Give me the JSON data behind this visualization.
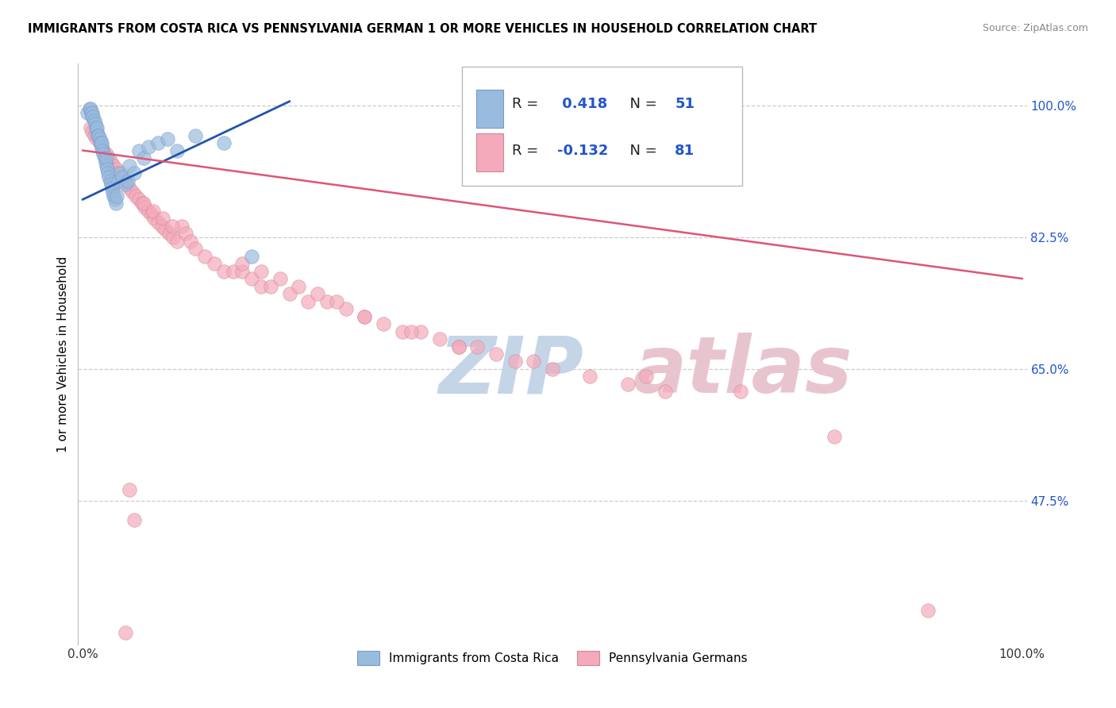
{
  "title": "IMMIGRANTS FROM COSTA RICA VS PENNSYLVANIA GERMAN 1 OR MORE VEHICLES IN HOUSEHOLD CORRELATION CHART",
  "source": "Source: ZipAtlas.com",
  "ylabel": "1 or more Vehicles in Household",
  "xlim": [
    -0.005,
    1.005
  ],
  "ylim": [
    0.285,
    1.055
  ],
  "background_color": "#ffffff",
  "blue_color": "#99bbdd",
  "pink_color": "#f4aabb",
  "blue_line_color": "#2255aa",
  "pink_line_color": "#dd5577",
  "blue_edge_color": "#7799cc",
  "pink_edge_color": "#cc8899",
  "R_blue": 0.418,
  "N_blue": 51,
  "R_pink": -0.132,
  "N_pink": 81,
  "grid_color": "#cccccc",
  "ytick_vals": [
    0.475,
    0.65,
    0.825,
    1.0
  ],
  "ytick_labels": [
    "47.5%",
    "65.0%",
    "82.5%",
    "100.0%"
  ],
  "legend_r1": "R =  0.418   N = 51",
  "legend_r2": "R = -0.132   N = 81",
  "blue_dots_x": [
    0.005,
    0.007,
    0.008,
    0.009,
    0.01,
    0.01,
    0.011,
    0.012,
    0.013,
    0.014,
    0.015,
    0.015,
    0.016,
    0.017,
    0.018,
    0.019,
    0.02,
    0.02,
    0.021,
    0.022,
    0.023,
    0.024,
    0.025,
    0.025,
    0.026,
    0.027,
    0.028,
    0.029,
    0.03,
    0.031,
    0.032,
    0.033,
    0.034,
    0.035,
    0.036,
    0.038,
    0.04,
    0.042,
    0.045,
    0.048,
    0.05,
    0.055,
    0.06,
    0.065,
    0.07,
    0.08,
    0.09,
    0.1,
    0.12,
    0.15,
    0.18
  ],
  "blue_dots_y": [
    0.99,
    0.995,
    0.995,
    0.99,
    0.985,
    0.99,
    0.985,
    0.98,
    0.975,
    0.97,
    0.965,
    0.97,
    0.96,
    0.96,
    0.955,
    0.95,
    0.945,
    0.95,
    0.94,
    0.935,
    0.93,
    0.925,
    0.92,
    0.93,
    0.915,
    0.91,
    0.905,
    0.9,
    0.895,
    0.89,
    0.885,
    0.88,
    0.875,
    0.87,
    0.88,
    0.9,
    0.91,
    0.905,
    0.895,
    0.9,
    0.92,
    0.91,
    0.94,
    0.93,
    0.945,
    0.95,
    0.955,
    0.94,
    0.96,
    0.95,
    0.8
  ],
  "pink_dots_x": [
    0.008,
    0.01,
    0.012,
    0.015,
    0.018,
    0.02,
    0.022,
    0.025,
    0.028,
    0.03,
    0.033,
    0.036,
    0.038,
    0.04,
    0.043,
    0.046,
    0.05,
    0.053,
    0.056,
    0.06,
    0.063,
    0.066,
    0.07,
    0.073,
    0.076,
    0.08,
    0.084,
    0.088,
    0.092,
    0.096,
    0.1,
    0.105,
    0.11,
    0.115,
    0.12,
    0.13,
    0.14,
    0.15,
    0.16,
    0.17,
    0.18,
    0.19,
    0.2,
    0.22,
    0.24,
    0.26,
    0.28,
    0.3,
    0.32,
    0.34,
    0.36,
    0.38,
    0.4,
    0.42,
    0.44,
    0.46,
    0.48,
    0.5,
    0.54,
    0.58,
    0.62,
    0.065,
    0.075,
    0.085,
    0.095,
    0.17,
    0.19,
    0.21,
    0.23,
    0.25,
    0.27,
    0.3,
    0.35,
    0.4,
    0.6,
    0.7,
    0.8,
    0.9,
    0.05,
    0.055,
    0.045
  ],
  "pink_dots_y": [
    0.97,
    0.965,
    0.96,
    0.955,
    0.95,
    0.945,
    0.94,
    0.935,
    0.93,
    0.925,
    0.92,
    0.915,
    0.91,
    0.905,
    0.9,
    0.895,
    0.89,
    0.885,
    0.88,
    0.875,
    0.87,
    0.865,
    0.86,
    0.855,
    0.85,
    0.845,
    0.84,
    0.835,
    0.83,
    0.825,
    0.82,
    0.84,
    0.83,
    0.82,
    0.81,
    0.8,
    0.79,
    0.78,
    0.78,
    0.78,
    0.77,
    0.76,
    0.76,
    0.75,
    0.74,
    0.74,
    0.73,
    0.72,
    0.71,
    0.7,
    0.7,
    0.69,
    0.68,
    0.68,
    0.67,
    0.66,
    0.66,
    0.65,
    0.64,
    0.63,
    0.62,
    0.87,
    0.86,
    0.85,
    0.84,
    0.79,
    0.78,
    0.77,
    0.76,
    0.75,
    0.74,
    0.72,
    0.7,
    0.68,
    0.64,
    0.62,
    0.56,
    0.33,
    0.49,
    0.45,
    0.3
  ],
  "watermark_zip_color": "#c5d5e8",
  "watermark_atlas_color": "#e8c5ce",
  "blue_trend_x": [
    0.0,
    0.22
  ],
  "blue_trend_y": [
    0.875,
    1.005
  ],
  "pink_trend_x": [
    0.0,
    1.0
  ],
  "pink_trend_y": [
    0.94,
    0.77
  ]
}
